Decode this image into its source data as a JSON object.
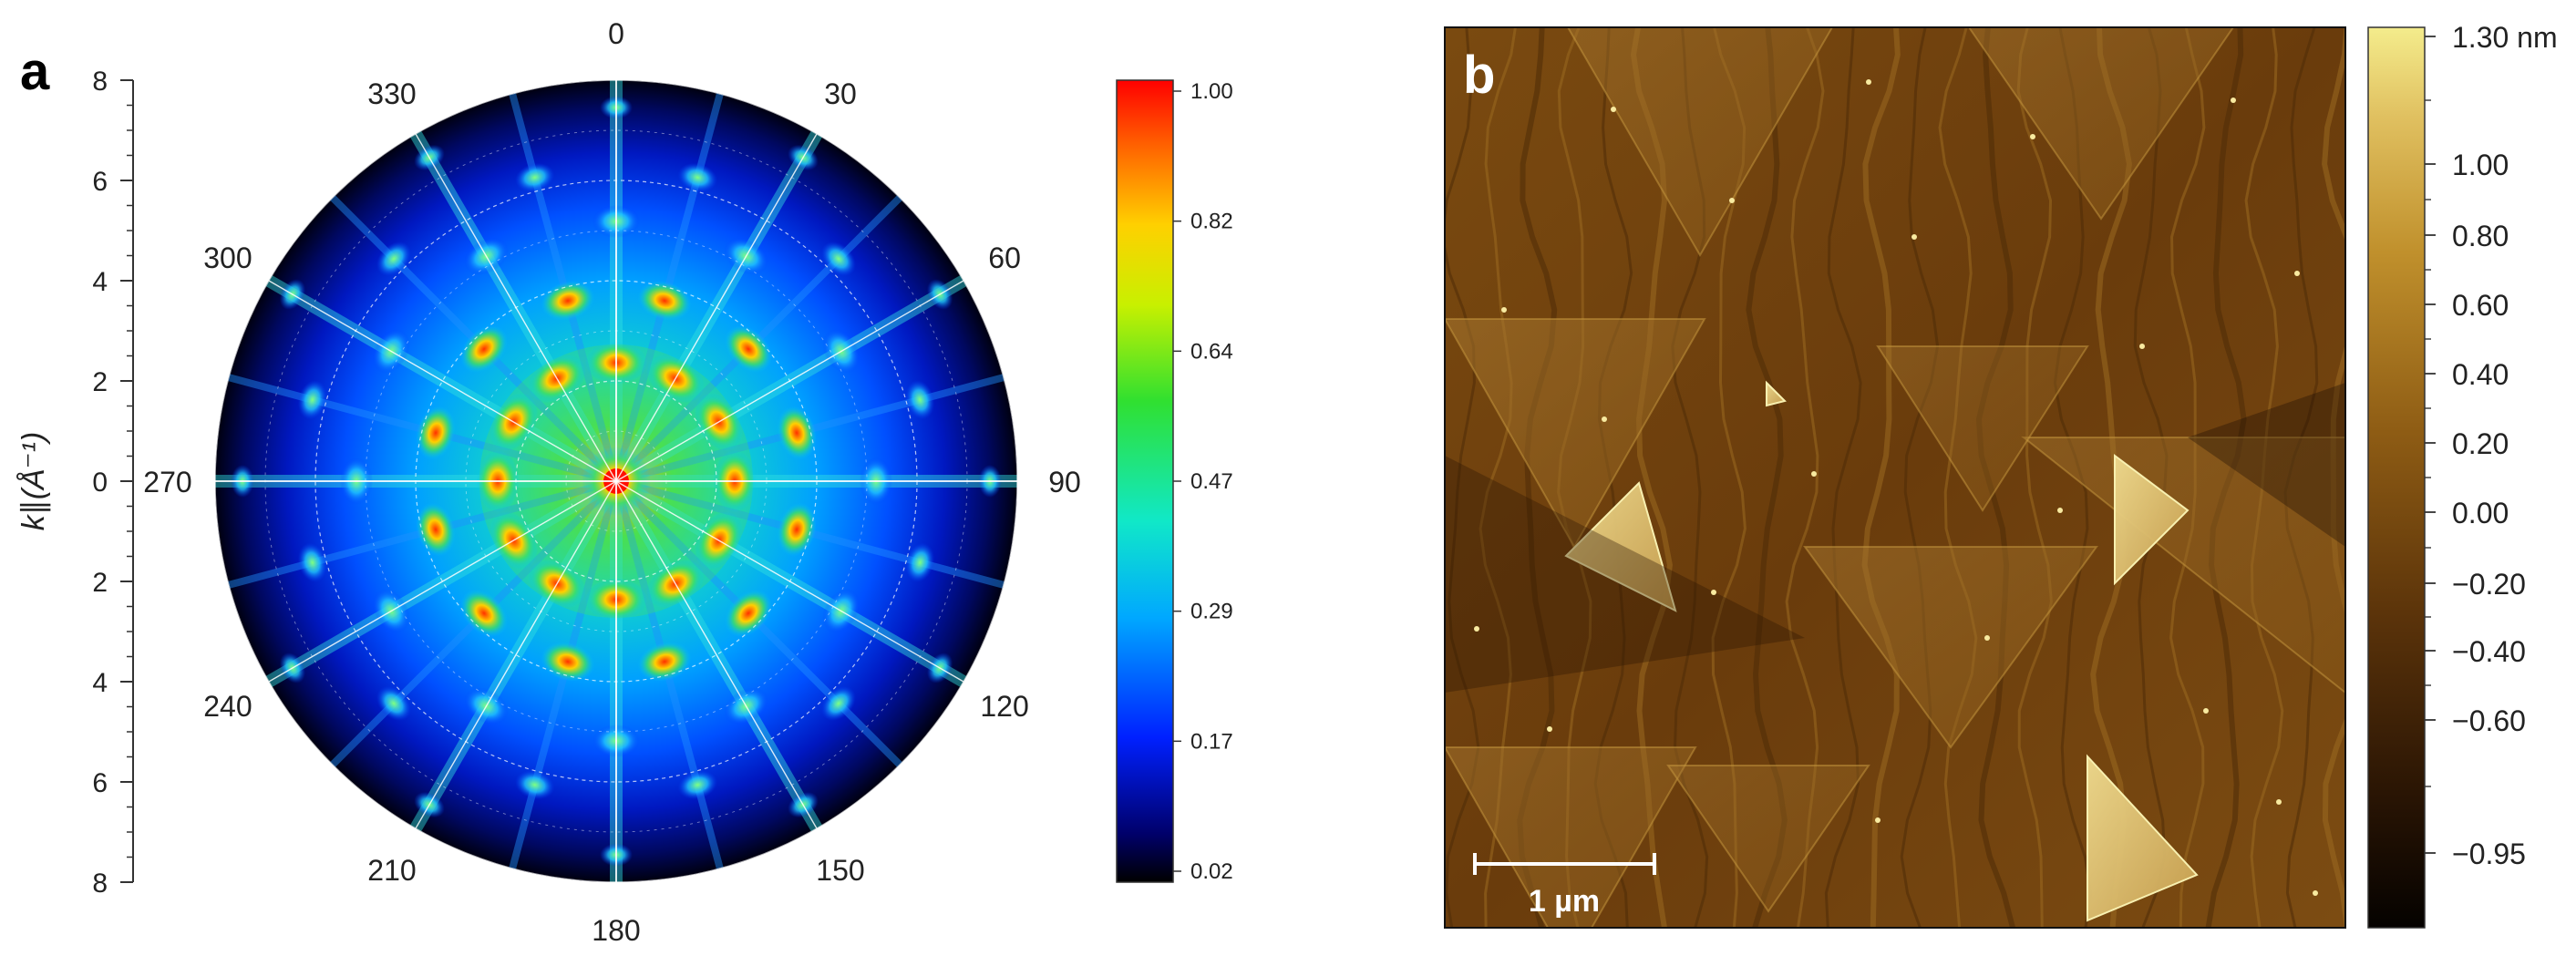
{
  "chart_data": [
    {
      "panel": "a",
      "type": "heatmap",
      "subtype": "polar",
      "ylabel": "k∥(Å⁻¹)",
      "radial_ticks": [
        8,
        6,
        4,
        2,
        0,
        2,
        4,
        6,
        8
      ],
      "radial_range": [
        0,
        8
      ],
      "angle_ticks": [
        0,
        30,
        60,
        90,
        120,
        150,
        180,
        210,
        240,
        270,
        300,
        330
      ],
      "colorbar": {
        "ticks": [
          "1.00",
          "0.82",
          "0.64",
          "0.47",
          "0.29",
          "0.17",
          "0.02"
        ],
        "range": [
          0.02,
          1.0
        ],
        "colormap": "jet"
      }
    },
    {
      "panel": "b",
      "type": "heatmap",
      "subtype": "AFM topography",
      "scale_bar_label": "1 µm",
      "colorbar": {
        "ticks": [
          "1.30 nm",
          "1.00",
          "0.80",
          "0.60",
          "0.40",
          "0.20",
          "0.00",
          "−0.20",
          "−0.40",
          "−0.60",
          "−0.95"
        ],
        "range": [
          -0.95,
          1.3
        ],
        "colormap": "copper-gold"
      }
    }
  ],
  "colors": {
    "jet": [
      "#000000",
      "#00008f",
      "#0030ff",
      "#00b4ff",
      "#10e8b0",
      "#30e020",
      "#d8f000",
      "#ffc000",
      "#ff5000",
      "#ff0000"
    ],
    "afm": [
      "#080300",
      "#3a1f06",
      "#6a3d0c",
      "#946014",
      "#b88828",
      "#d8b050",
      "#f0e080"
    ]
  }
}
